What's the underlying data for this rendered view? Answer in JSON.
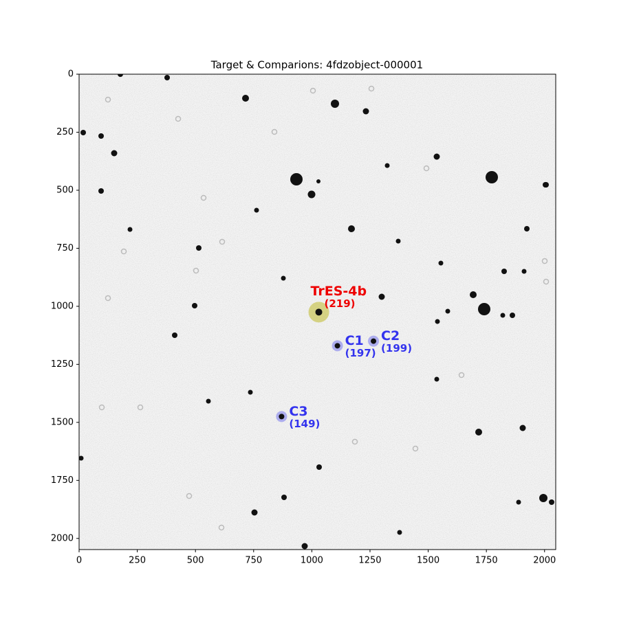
{
  "chart_data": {
    "type": "image",
    "title": "Target & Comparions: 4fdzobject-000001",
    "xlim": [
      0,
      2048
    ],
    "ylim": [
      2048,
      0
    ],
    "xticks": [
      0,
      250,
      500,
      750,
      1000,
      1250,
      1500,
      1750,
      2000
    ],
    "yticks": [
      0,
      250,
      500,
      750,
      1000,
      1250,
      1500,
      1750,
      2000
    ],
    "markers": [
      {
        "label": "TrES-4b",
        "sublabel": "(219)",
        "x": 1030,
        "y": 1025,
        "color": "#ee0000",
        "ring": "#b5b000",
        "kind": "target"
      },
      {
        "label": "C1",
        "sublabel": "(197)",
        "x": 1110,
        "y": 1170,
        "color": "#3333ee",
        "ring": "#3333ee",
        "kind": "comp"
      },
      {
        "label": "C2",
        "sublabel": "(199)",
        "x": 1265,
        "y": 1150,
        "color": "#3333ee",
        "ring": "#3333ee",
        "kind": "comp"
      },
      {
        "label": "C3",
        "sublabel": "(149)",
        "x": 870,
        "y": 1475,
        "color": "#3333ee",
        "ring": "#3333ee",
        "kind": "comp"
      }
    ]
  }
}
